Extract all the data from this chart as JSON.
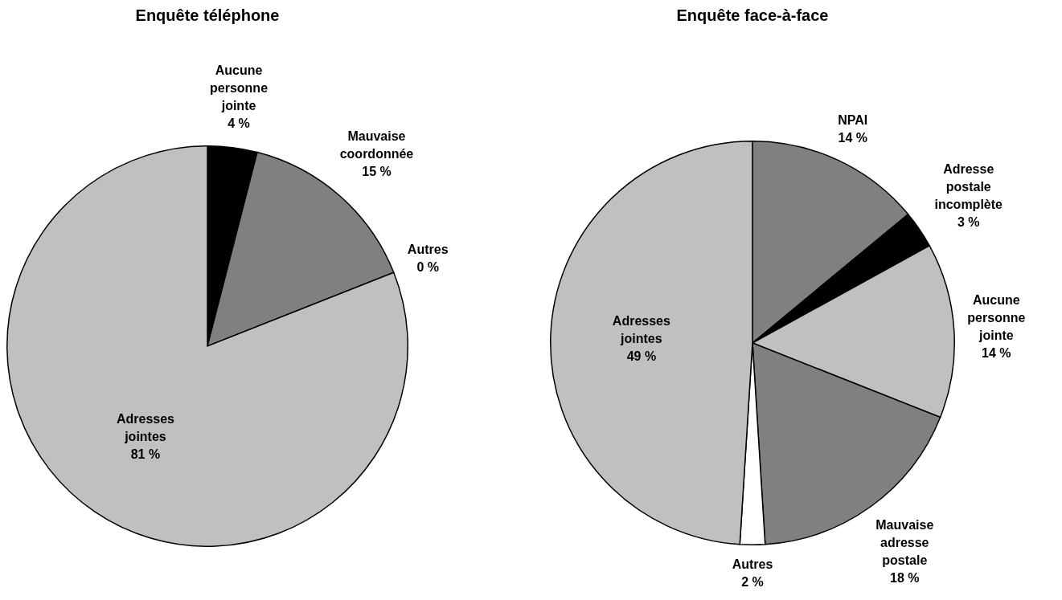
{
  "chart_data": [
    {
      "type": "pie",
      "title": "Enquête téléphone",
      "categories": [
        "Aucune personne jointe",
        "Mauvaise coordonnée",
        "Autres",
        "Adresses jointes"
      ],
      "values": [
        4,
        15,
        0,
        81
      ],
      "colors": [
        "#000000",
        "#808080",
        "#ffffff",
        "#c0c0c0"
      ],
      "value_labels": [
        "4 %",
        "15 %",
        "0 %",
        "81 %"
      ]
    },
    {
      "type": "pie",
      "title": "Enquête face-à-face",
      "categories": [
        "NPAI",
        "Adresse postale incomplète",
        "Aucune personne jointe",
        "Mauvaise adresse postale",
        "Autres",
        "Adresses jointes"
      ],
      "values": [
        14,
        3,
        14,
        18,
        2,
        49
      ],
      "colors": [
        "#808080",
        "#000000",
        "#c0c0c0",
        "#808080",
        "#ffffff",
        "#c0c0c0"
      ],
      "value_labels": [
        "14 %",
        "3 %",
        "14 %",
        "18 %",
        "2 %",
        "49 %"
      ]
    }
  ]
}
